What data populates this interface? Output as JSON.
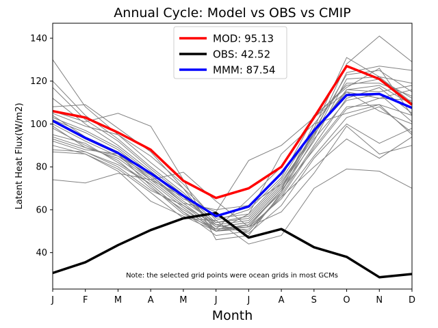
{
  "chart_data": {
    "type": "line",
    "title": "Annual Cycle: Model vs OBS vs CMIP",
    "xlabel": "Month",
    "ylabel": "Latent Heat Flux(W/m2)",
    "note": "Note: the selected grid points were ocean grids in most GCMs",
    "categories": [
      "J",
      "F",
      "M",
      "A",
      "M",
      "J",
      "J",
      "A",
      "S",
      "O",
      "N",
      "D"
    ],
    "ylim": [
      23,
      147
    ],
    "yticks": [
      40,
      60,
      80,
      100,
      120,
      140
    ],
    "legend_position": "top-center",
    "series": [
      {
        "name": "MOD",
        "label": "MOD: 95.13",
        "color": "#ff0000",
        "values": [
          106,
          103,
          96,
          88,
          73.5,
          65.5,
          70,
          80,
          103,
          127,
          121,
          109
        ]
      },
      {
        "name": "OBS",
        "label": "OBS: 42.52",
        "color": "#000000",
        "values": [
          30.5,
          35.5,
          43.5,
          50.5,
          56,
          58.5,
          47,
          51,
          42.5,
          38,
          28.5,
          30
        ]
      },
      {
        "name": "MMM",
        "label": "MMM: 87.54",
        "color": "#0000ff",
        "values": [
          101.5,
          93.5,
          86.5,
          77,
          66.5,
          57,
          61.5,
          77,
          97,
          113.5,
          114,
          107.5
        ]
      }
    ],
    "cmip_color": "#808080",
    "cmip_members": [
      [
        130,
        108,
        95,
        82,
        70,
        56,
        58,
        74,
        98,
        131,
        122,
        110
      ],
      [
        120,
        104,
        93,
        80,
        68,
        54,
        56,
        72,
        95,
        128,
        141,
        129
      ],
      [
        117,
        102,
        92,
        79,
        67,
        53,
        55,
        71,
        94,
        124,
        127,
        125
      ],
      [
        112,
        100,
        90,
        78,
        66,
        52,
        54,
        70,
        92,
        121,
        122,
        119
      ],
      [
        108,
        109,
        98,
        87,
        70,
        50,
        52,
        69,
        100,
        119,
        119,
        113
      ],
      [
        106,
        101,
        105,
        99,
        74,
        46,
        48,
        68,
        96,
        116,
        115,
        118
      ],
      [
        105,
        99,
        95,
        85,
        72,
        55,
        60,
        75,
        103,
        118,
        121,
        112
      ],
      [
        104,
        94,
        87,
        74,
        66,
        53,
        50,
        67,
        90,
        112,
        117,
        105
      ],
      [
        103,
        97,
        89,
        77,
        65,
        59,
        83,
        90,
        103,
        115,
        112,
        116
      ],
      [
        102,
        96,
        88,
        76,
        64,
        54,
        57,
        73,
        95,
        116,
        118,
        109
      ],
      [
        101,
        93,
        86,
        75,
        63,
        52,
        54,
        70,
        97,
        123,
        125,
        115
      ],
      [
        100,
        92,
        85,
        74,
        62,
        51,
        53,
        68,
        93,
        111,
        114,
        101
      ],
      [
        99,
        89,
        84,
        73,
        61,
        50,
        51,
        66,
        89,
        108,
        109,
        95
      ],
      [
        98,
        90,
        83,
        70,
        60,
        51,
        65,
        80,
        104,
        117,
        126,
        104
      ],
      [
        95,
        91,
        82,
        72,
        59,
        50,
        53,
        69,
        88,
        107,
        112,
        111
      ],
      [
        94,
        89,
        85,
        76,
        63,
        60,
        62,
        72,
        96,
        115,
        106,
        100
      ],
      [
        93,
        88,
        86,
        71,
        58,
        51,
        52,
        65,
        85,
        103,
        108,
        96
      ],
      [
        92,
        87,
        80,
        69,
        62,
        53,
        49,
        62,
        84,
        100,
        91,
        98
      ],
      [
        90,
        86,
        78,
        64,
        57,
        50,
        58,
        86,
        100,
        105,
        109,
        104
      ],
      [
        88,
        87,
        81,
        72,
        59,
        48,
        50,
        66,
        80,
        93,
        84,
        94
      ],
      [
        87,
        86,
        79,
        68,
        56,
        55,
        44,
        48,
        70,
        79,
        78,
        70
      ],
      [
        74,
        72.5,
        77,
        74,
        77.5,
        64,
        52,
        59,
        77,
        99,
        86,
        90
      ]
    ]
  }
}
